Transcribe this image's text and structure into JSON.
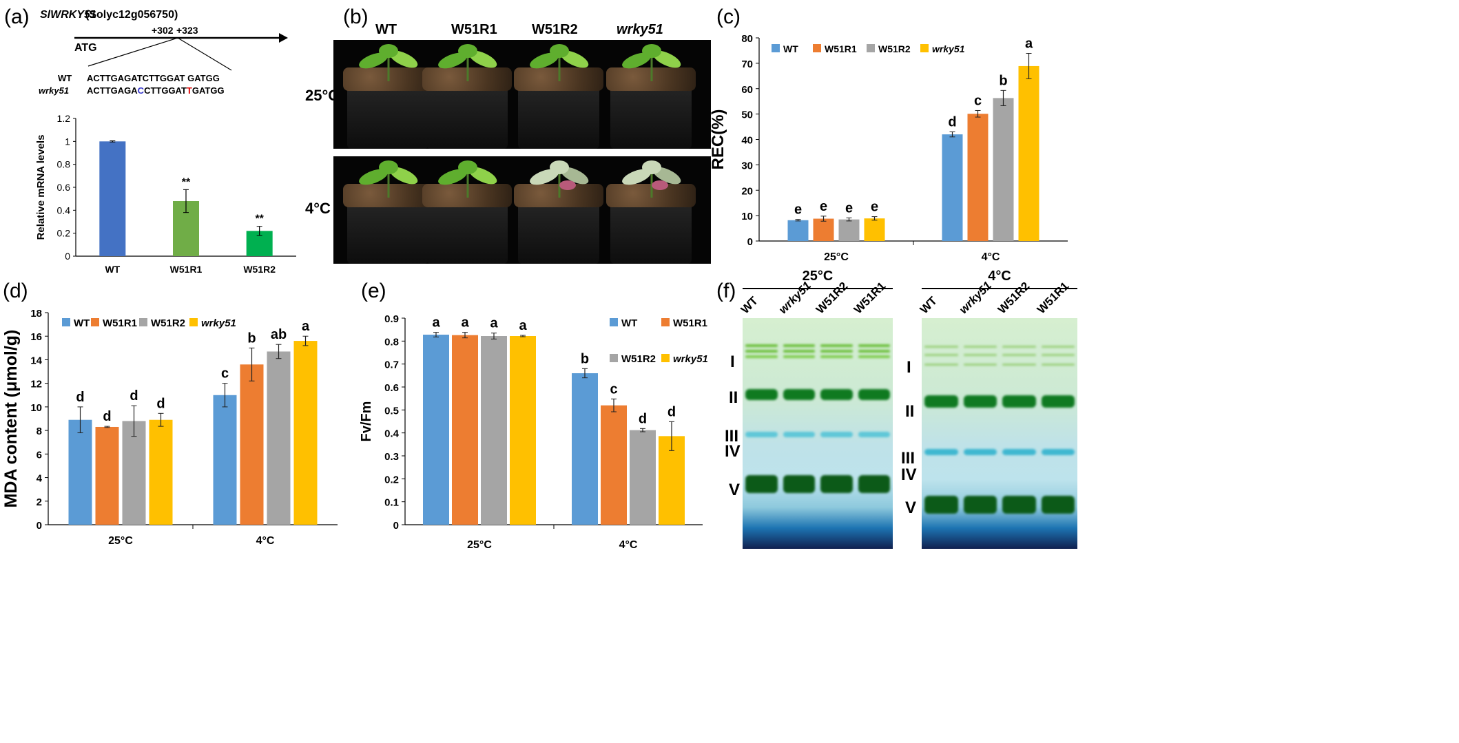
{
  "panels": {
    "a": {
      "label": "(a)",
      "gene_name": "SlWRKY51",
      "gene_id": "(Solyc12g056750)",
      "pos1": "+302",
      "pos2": "+323",
      "atg": "ATG",
      "seq_wt_label": "WT",
      "seq_wt": "ACTTGAGATCTTGGAT GATGG",
      "seq_mut_label": "wrky51",
      "seq_mut_parts": [
        "ACTTGAGA",
        "C",
        "CTTGGAT",
        "T",
        "GATGG"
      ]
    },
    "b": {
      "label": "(b)",
      "columns": [
        "WT",
        "W51R1",
        "W51R2",
        "wrky51"
      ],
      "rows": [
        "25°C",
        "4°C"
      ]
    },
    "c": {
      "label": "(c)"
    },
    "d": {
      "label": "(d)"
    },
    "e": {
      "label": "(e)"
    },
    "f": {
      "label": "(f)",
      "gels": [
        {
          "title": "25°C",
          "lanes": [
            "WT",
            "wrky51",
            "W51R2",
            "W51R1"
          ],
          "bands": [
            "I",
            "II",
            "III",
            "IV",
            "V"
          ]
        },
        {
          "title": "4°C",
          "lanes": [
            "WT",
            "wrky51",
            "W51R2",
            "W51R1"
          ],
          "bands": [
            "I",
            "II",
            "III",
            "IV",
            "V"
          ]
        }
      ]
    }
  },
  "colors": {
    "wt": "#5b9bd5",
    "w51r1": "#ed7d31",
    "w51r2": "#a5a5a5",
    "wrky51": "#ffc000",
    "a_wt": "#4472c4",
    "a_w51r1": "#70ad47",
    "a_w51r2": "#00b050"
  },
  "chart_data": [
    {
      "id": "a",
      "type": "bar",
      "categories": [
        "WT",
        "W51R1",
        "W51R2"
      ],
      "values": [
        1.0,
        0.48,
        0.22
      ],
      "errors": [
        0.005,
        0.1,
        0.04
      ],
      "annotations": [
        "",
        "**",
        "**"
      ],
      "ylabel": "Relative mRNA levels",
      "ylim": [
        0,
        1.2
      ],
      "yticks": [
        "0",
        "0.2",
        "0.4",
        "0.6",
        "0.8",
        "1",
        "1.2"
      ]
    },
    {
      "id": "c",
      "type": "bar",
      "categories": [
        "25°C",
        "4°C"
      ],
      "series": [
        {
          "name": "WT",
          "values": [
            8.2,
            42.0
          ],
          "errors": [
            0.3,
            1.0
          ],
          "letters": [
            "e",
            "d"
          ]
        },
        {
          "name": "W51R1",
          "values": [
            8.8,
            50.1
          ],
          "errors": [
            1.0,
            1.3
          ],
          "letters": [
            "e",
            "c"
          ]
        },
        {
          "name": "W51R2",
          "values": [
            8.5,
            56.3
          ],
          "errors": [
            0.6,
            3.0
          ],
          "letters": [
            "e",
            "b"
          ]
        },
        {
          "name": "wrky51",
          "values": [
            8.9,
            68.9
          ],
          "errors": [
            0.7,
            5.0
          ],
          "letters": [
            "e",
            "a"
          ]
        }
      ],
      "ylabel": "REC(%)",
      "ylim": [
        0,
        80
      ],
      "yticks": [
        "0",
        "10",
        "20",
        "30",
        "40",
        "50",
        "60",
        "70",
        "80"
      ],
      "legend": "top"
    },
    {
      "id": "d",
      "type": "bar",
      "categories": [
        "25°C",
        "4°C"
      ],
      "series": [
        {
          "name": "WT",
          "values": [
            8.9,
            11.0
          ],
          "errors": [
            1.1,
            1.0
          ],
          "letters": [
            "d",
            "c"
          ]
        },
        {
          "name": "W51R1",
          "values": [
            8.3,
            13.6
          ],
          "errors": [
            0.05,
            1.4
          ],
          "letters": [
            "d",
            "b"
          ]
        },
        {
          "name": "W51R2",
          "values": [
            8.8,
            14.7
          ],
          "errors": [
            1.3,
            0.6
          ],
          "letters": [
            "d",
            "ab"
          ]
        },
        {
          "name": "wrky51",
          "values": [
            8.9,
            15.6
          ],
          "errors": [
            0.55,
            0.4
          ],
          "letters": [
            "d",
            "a"
          ]
        }
      ],
      "ylabel": "MDA content (μmol/g)",
      "ylim": [
        0,
        18
      ],
      "yticks": [
        "0",
        "2",
        "4",
        "6",
        "8",
        "10",
        "12",
        "14",
        "16",
        "18"
      ],
      "legend": "top"
    },
    {
      "id": "e",
      "type": "bar",
      "categories": [
        "25°C",
        "4°C"
      ],
      "series": [
        {
          "name": "WT",
          "values": [
            0.828,
            0.66
          ],
          "errors": [
            0.01,
            0.02
          ],
          "letters": [
            "a",
            "b"
          ]
        },
        {
          "name": "W51R1",
          "values": [
            0.826,
            0.52
          ],
          "errors": [
            0.012,
            0.028
          ],
          "letters": [
            "a",
            "c"
          ]
        },
        {
          "name": "W51R2",
          "values": [
            0.822,
            0.412
          ],
          "errors": [
            0.013,
            0.007
          ],
          "letters": [
            "a",
            "d"
          ]
        },
        {
          "name": "wrky51",
          "values": [
            0.822,
            0.386
          ],
          "errors": [
            0.003,
            0.063
          ],
          "letters": [
            "a",
            "d"
          ]
        }
      ],
      "ylabel": "Fv/Fm",
      "ylim": [
        0,
        0.9
      ],
      "yticks": [
        "0",
        "0.1",
        "0.2",
        "0.3",
        "0.4",
        "0.5",
        "0.6",
        "0.7",
        "0.8",
        "0.9"
      ],
      "legend": "right"
    }
  ]
}
